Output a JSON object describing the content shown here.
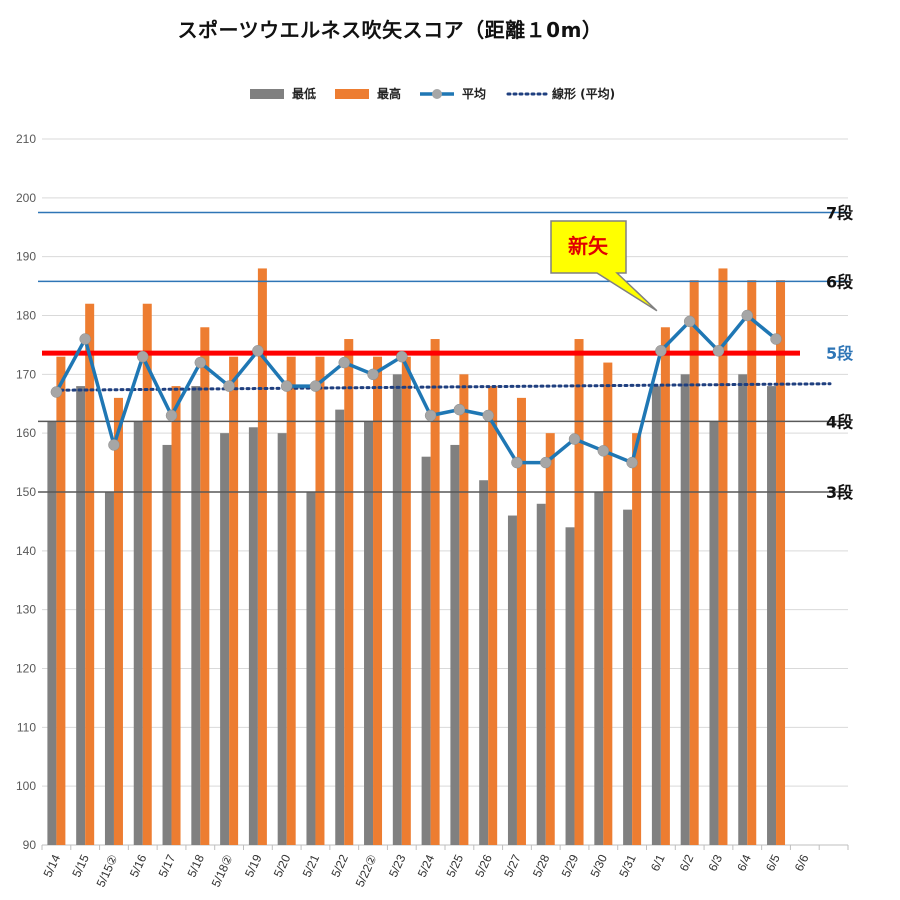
{
  "chart_data": {
    "type": "bar",
    "title": "スポーツウエルネス吹矢スコア（距離１0m）",
    "ylim": [
      90,
      210
    ],
    "yticks": [
      90,
      100,
      110,
      120,
      130,
      140,
      150,
      160,
      170,
      180,
      190,
      200,
      210
    ],
    "grid": true,
    "legend_position": "top",
    "categories": [
      "5/14",
      "5/15",
      "5/15②",
      "5/16",
      "5/17",
      "5/18",
      "5/18②",
      "5/19",
      "5/20",
      "5/21",
      "5/22",
      "5/22②",
      "5/23",
      "5/24",
      "5/25",
      "5/26",
      "5/27",
      "5/28",
      "5/29",
      "5/30",
      "5/31",
      "6/1",
      "6/2",
      "6/3",
      "6/4",
      "6/5",
      "6/6"
    ],
    "series": [
      {
        "name": "最低",
        "kind": "bar",
        "color": "#808080",
        "values": [
          162,
          168,
          150,
          162,
          158,
          168,
          160,
          161,
          160,
          150,
          164,
          162,
          170,
          156,
          158,
          152,
          146,
          148,
          144,
          150,
          147,
          168,
          170,
          162,
          170,
          168,
          null
        ]
      },
      {
        "name": "最高",
        "kind": "bar",
        "color": "#ed7d31",
        "values": [
          173,
          182,
          166,
          182,
          168,
          178,
          173,
          188,
          173,
          173,
          176,
          173,
          173,
          176,
          170,
          168,
          166,
          160,
          176,
          172,
          160,
          178,
          186,
          188,
          186,
          186,
          null
        ]
      },
      {
        "name": "平均",
        "kind": "line",
        "color": "#1f77b4",
        "marker_color": "#a6a6a6",
        "values": [
          167,
          176,
          158,
          173,
          163,
          172,
          168,
          174,
          168,
          168,
          172,
          170,
          173,
          163,
          164,
          163,
          155,
          155,
          159,
          157,
          155,
          174,
          179,
          174,
          180,
          176,
          null
        ]
      },
      {
        "name": "線形 (平均)",
        "kind": "trendline",
        "style": "dotted",
        "color": "#1f3f7f",
        "start": 167.3,
        "end": 168.4
      }
    ],
    "reference_lines": [
      {
        "label": "7段",
        "value": 197.5,
        "color": "#2e75b6",
        "label_color": "#111111"
      },
      {
        "label": "6段",
        "value": 185.8,
        "color": "#2e75b6",
        "label_color": "#111111"
      },
      {
        "label": "5段",
        "value": 173.6,
        "color": "#ff0000",
        "label_color": "#2e75b6"
      },
      {
        "label": "4段",
        "value": 162,
        "color": "#595959",
        "label_color": "#111111"
      },
      {
        "label": "3段",
        "value": 150,
        "color": "#595959",
        "label_color": "#111111"
      }
    ],
    "callout": {
      "text": "新矢",
      "category": "6/1",
      "fill": "#ffff00",
      "border": "#808080"
    }
  }
}
